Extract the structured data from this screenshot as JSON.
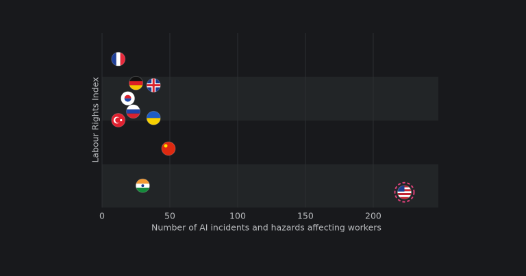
{
  "chart_data": {
    "type": "scatter",
    "xlabel": "Number of AI incidents and hazards affecting workers",
    "ylabel": "Labour Rights Index",
    "x": [
      12,
      25,
      38,
      19,
      23,
      38,
      12,
      49,
      30,
      223
    ],
    "y": [
      3.4,
      2.85,
      2.8,
      2.5,
      2.2,
      2.05,
      2.0,
      1.35,
      0.5,
      0.35
    ],
    "xlim": [
      0,
      248
    ],
    "xticks": [
      0,
      50,
      100,
      150,
      200
    ],
    "ylim": [
      0,
      4
    ],
    "grid": true
  }
}
